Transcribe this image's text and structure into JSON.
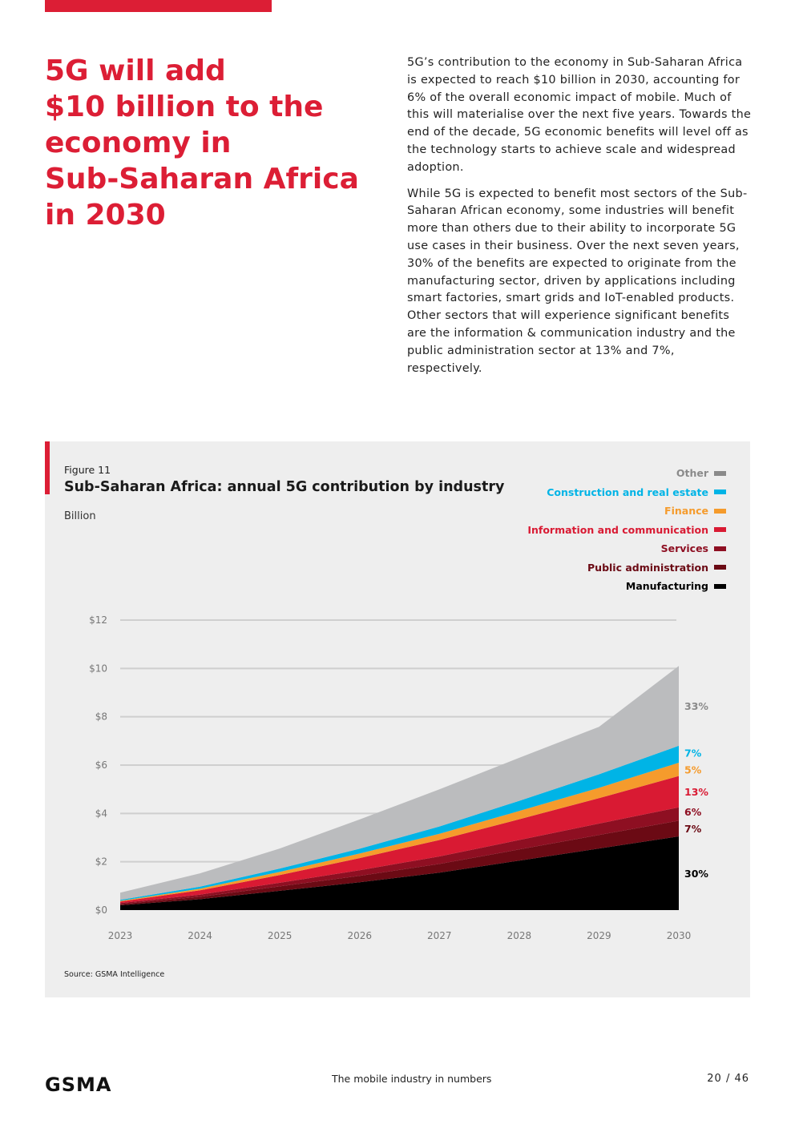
{
  "headline": "5G will add\n$10 billion to the\neconomy in\nSub-Saharan Africa\nin 2030",
  "paragraphs": [
    "5G’s contribution to the economy in Sub-Saharan Africa is expected to reach $10 billion in 2030, accounting for 6% of the overall economic impact of mobile. Much of this will materialise over the next five years. Towards the end of the decade, 5G economic benefits will level off as the technology starts to achieve scale and widespread adoption.",
    "While 5G is expected to benefit most sectors of the Sub-Saharan African economy, some industries will benefit more than others due to their ability to incorporate 5G use cases in their business. Over the next seven years, 30% of the benefits are expected to originate from the manufacturing sector, driven by applications including smart factories, smart grids and IoT-enabled products. Other sectors that will experience significant benefits are the information & communication industry and the public administration sector at 13% and 7%, respectively."
  ],
  "figure": {
    "label": "Figure 11",
    "title": "Sub-Saharan Africa: annual 5G contribution by industry",
    "unit": "Billion",
    "source": "Source: GSMA Intelligence"
  },
  "chart_data": {
    "type": "area",
    "stacked": true,
    "title": "Sub-Saharan Africa: annual 5G contribution by industry",
    "ylabel": "Billion",
    "x": [
      "2023",
      "2024",
      "2025",
      "2026",
      "2027",
      "2028",
      "2029",
      "2030"
    ],
    "ylim": [
      0,
      12
    ],
    "yticks": [
      0,
      2,
      4,
      6,
      8,
      10,
      12
    ],
    "ytick_labels": [
      "$0",
      "$2",
      "$4",
      "$6",
      "$8",
      "$10",
      "$12"
    ],
    "grid": true,
    "legend_position": "top-right",
    "series": [
      {
        "name": "Manufacturing",
        "color": "#000000",
        "label_color": "#000000",
        "end_label": "30%",
        "values": [
          0.2,
          0.45,
          0.8,
          1.15,
          1.55,
          2.05,
          2.55,
          3.05
        ]
      },
      {
        "name": "Public administration",
        "color": "#6b0a14",
        "label_color": "#6b0a14",
        "end_label": "7%",
        "values": [
          0.05,
          0.1,
          0.18,
          0.27,
          0.36,
          0.46,
          0.56,
          0.65
        ]
      },
      {
        "name": "Services",
        "color": "#8e0f22",
        "label_color": "#8e0f22",
        "end_label": "6%",
        "values": [
          0.04,
          0.09,
          0.15,
          0.23,
          0.31,
          0.39,
          0.47,
          0.55
        ]
      },
      {
        "name": "Information and communication",
        "color": "#d91a33",
        "label_color": "#d91a33",
        "end_label": "13%",
        "values": [
          0.06,
          0.18,
          0.32,
          0.5,
          0.68,
          0.86,
          1.05,
          1.3
        ]
      },
      {
        "name": "Finance",
        "color": "#f59b2c",
        "label_color": "#f59b2c",
        "end_label": "5%",
        "values": [
          0.03,
          0.07,
          0.13,
          0.19,
          0.26,
          0.34,
          0.43,
          0.55
        ]
      },
      {
        "name": "Construction and real estate",
        "color": "#00b4e6",
        "label_color": "#00b4e6",
        "end_label": "7%",
        "values": [
          0.04,
          0.08,
          0.14,
          0.2,
          0.3,
          0.42,
          0.56,
          0.7
        ]
      },
      {
        "name": "Other",
        "color": "#bbbcbe",
        "legend_color": "#8a8a8a",
        "label_color": "#8a8a8a",
        "end_label": "33%",
        "values": [
          0.3,
          0.55,
          0.83,
          1.21,
          1.54,
          1.78,
          1.96,
          3.3
        ]
      }
    ]
  },
  "footer": {
    "logo": "GSMA",
    "center": "The mobile industry in numbers",
    "page": "20 / 46"
  }
}
